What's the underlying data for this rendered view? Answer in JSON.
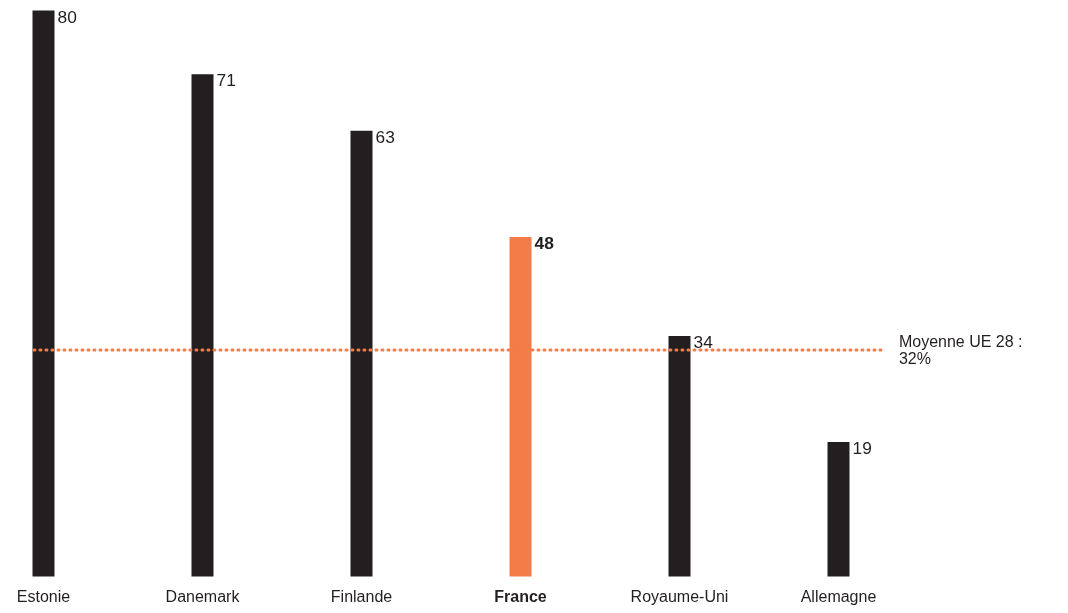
{
  "chart_data": {
    "type": "bar",
    "categories": [
      "Estonie",
      "Danemark",
      "Finlande",
      "France",
      "Royaume-Uni",
      "Allemagne"
    ],
    "values": [
      80,
      71,
      63,
      48,
      34,
      19
    ],
    "colors": [
      "#231f20",
      "#231f20",
      "#231f20",
      "#f47c48",
      "#231f20",
      "#231f20"
    ],
    "data_labels": true,
    "grid": false,
    "ref_lines": [
      {
        "axis": "y",
        "value": 32,
        "label": "Moyenne UE 28 :\n32%",
        "color": "#f47c48",
        "line_style": "dotted"
      }
    ]
  }
}
